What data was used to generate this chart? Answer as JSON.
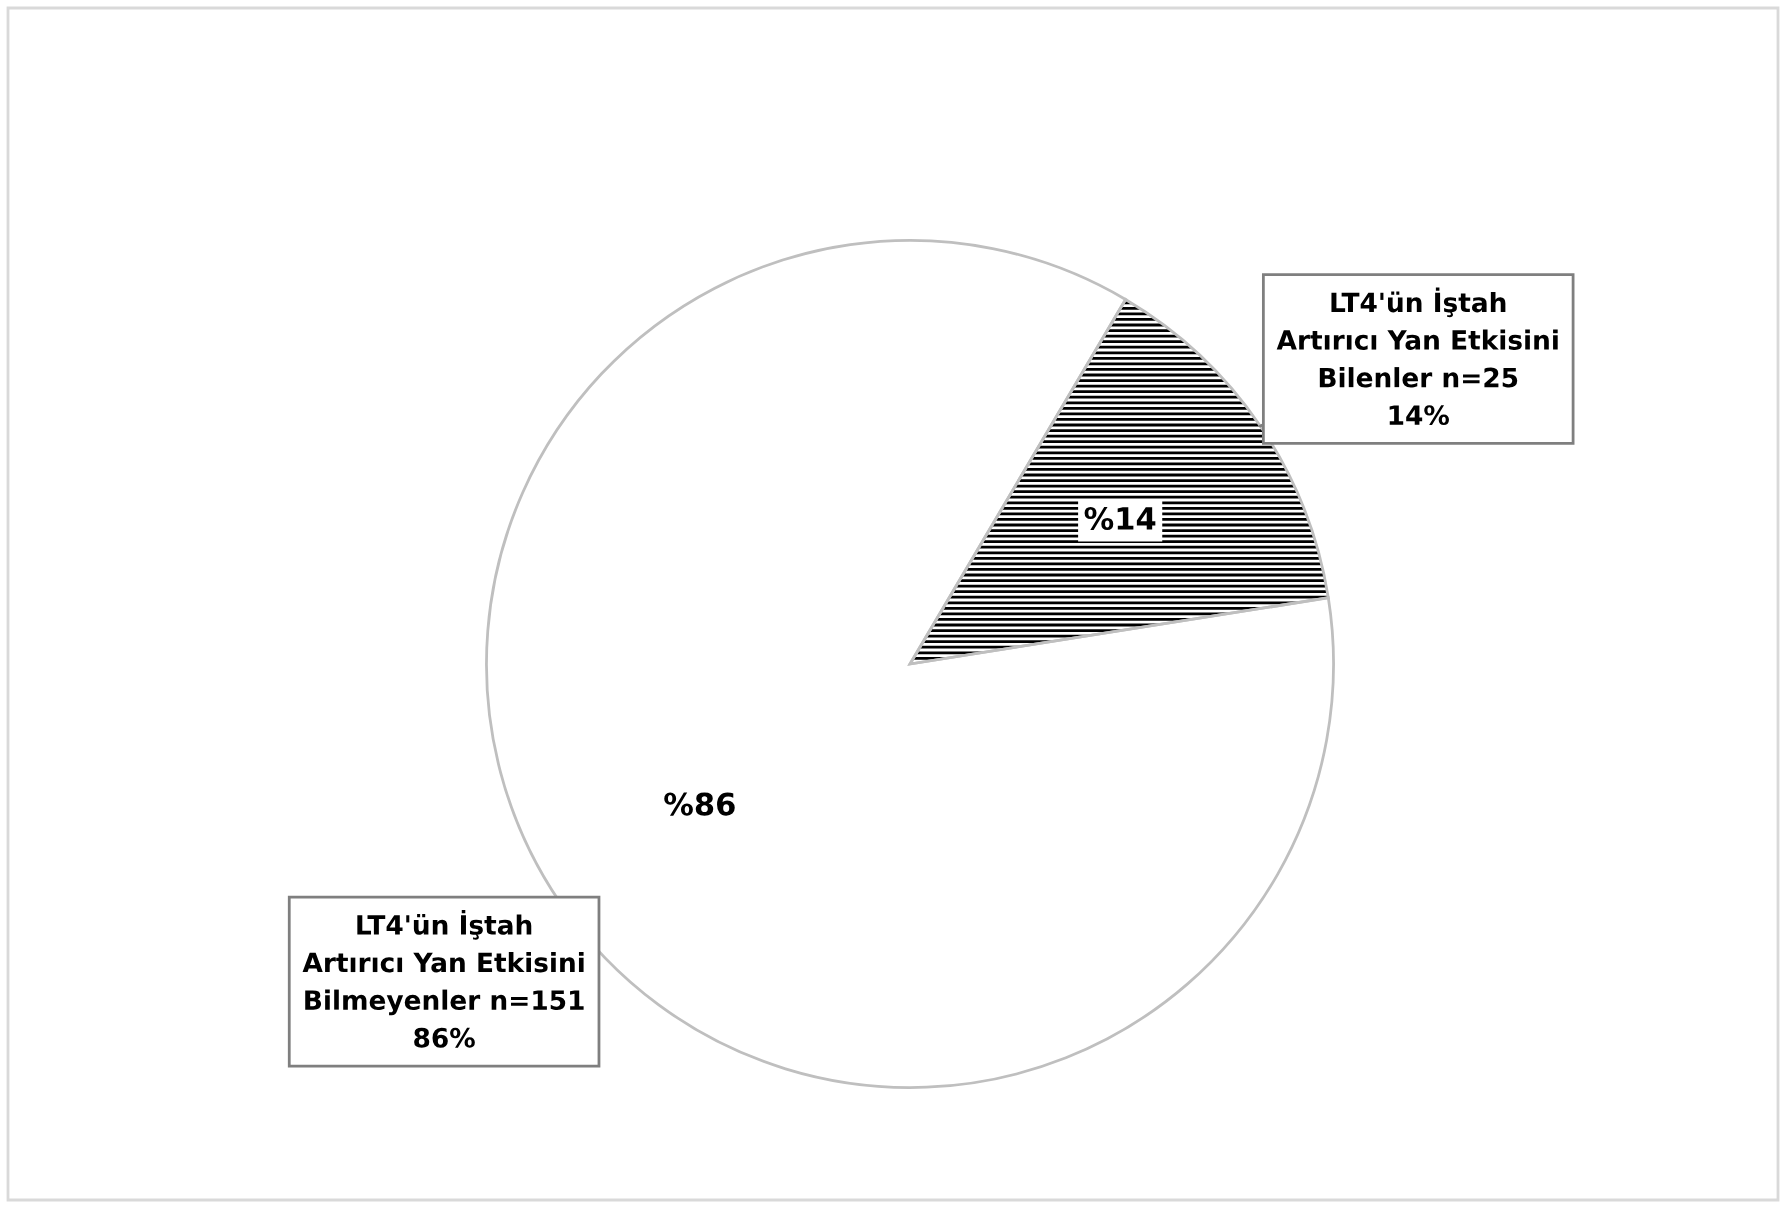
{
  "chart_data": {
    "type": "pie",
    "categories": [
      "LT4'ün İştah\nArtırıcı Yan Etkisini\nBilenler n=25\n14%",
      "LT4'ün İştah\nArtırıcı Yan Etkisini\nBilmeyenler n=151\n86%"
    ],
    "values": [
      14,
      86
    ],
    "colors": [
      "#000000",
      "#ffffff"
    ],
    "value_labels": [
      "%14",
      "%86"
    ],
    "legend": false
  }
}
